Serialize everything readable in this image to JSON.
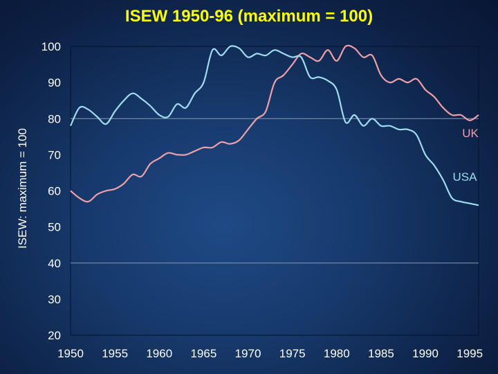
{
  "chart_data": {
    "type": "line",
    "title": "ISEW 1950-96 (maximum = 100)",
    "xlabel": "",
    "ylabel": "ISEW: maximum = 100",
    "xlim": [
      1950,
      1996
    ],
    "ylim": [
      20,
      100
    ],
    "x_ticks": [
      "1950",
      "1955",
      "1960",
      "1965",
      "1970",
      "1975",
      "1980",
      "1985",
      "1990",
      "1995"
    ],
    "y_ticks": [
      "100",
      "90",
      "80",
      "70",
      "60",
      "50",
      "40",
      "30",
      "20"
    ],
    "grid": "horizontal at 80 and 40",
    "series": [
      {
        "name": "UK",
        "color": "#f0a0a8",
        "x": [
          1950,
          1951,
          1952,
          1953,
          1954,
          1955,
          1956,
          1957,
          1958,
          1959,
          1960,
          1961,
          1962,
          1963,
          1964,
          1965,
          1966,
          1967,
          1968,
          1969,
          1970,
          1971,
          1972,
          1973,
          1974,
          1975,
          1976,
          1977,
          1978,
          1979,
          1980,
          1981,
          1982,
          1983,
          1984,
          1985,
          1986,
          1987,
          1988,
          1989,
          1990,
          1991,
          1992,
          1993,
          1994,
          1995,
          1996
        ],
        "y": [
          60,
          58,
          57,
          59,
          60,
          60.5,
          62,
          64.5,
          64,
          67.5,
          69,
          70.5,
          70,
          70,
          71,
          72,
          72,
          73.5,
          73,
          74,
          77,
          80,
          82,
          90,
          92,
          95,
          98,
          97,
          96,
          99,
          96,
          100,
          99.5,
          97,
          97.5,
          92,
          90,
          91,
          90,
          91,
          88,
          86,
          83,
          81,
          81,
          79.5,
          81
        ]
      },
      {
        "name": "USA",
        "color": "#9fdcee",
        "x": [
          1950,
          1951,
          1952,
          1953,
          1954,
          1955,
          1956,
          1957,
          1958,
          1959,
          1960,
          1961,
          1962,
          1963,
          1964,
          1965,
          1966,
          1967,
          1968,
          1969,
          1970,
          1971,
          1972,
          1973,
          1974,
          1975,
          1976,
          1977,
          1978,
          1979,
          1980,
          1981,
          1982,
          1983,
          1984,
          1985,
          1986,
          1987,
          1988,
          1989,
          1990,
          1991,
          1992,
          1993,
          1994,
          1995,
          1996
        ],
        "y": [
          78,
          83,
          82.5,
          80.5,
          78.5,
          82,
          85,
          87,
          85.5,
          83.5,
          81,
          80.5,
          84,
          83,
          87,
          90,
          99,
          97.5,
          100,
          99.5,
          97,
          98,
          97.5,
          99,
          98,
          97,
          97,
          91.5,
          91.5,
          90.5,
          88,
          79,
          81,
          78,
          80,
          78,
          78,
          77,
          77,
          75.5,
          70,
          67,
          63,
          58,
          57,
          56.5,
          56
        ]
      }
    ]
  }
}
